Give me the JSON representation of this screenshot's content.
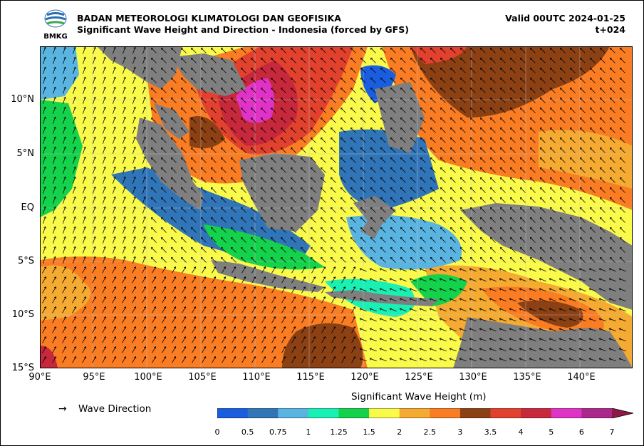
{
  "header": {
    "agency": "BADAN METEOROLOGI KLIMATOLOGI DAN GEOFISIKA",
    "product": "Significant Wave Height and Direction - Indonesia (forced by GFS)",
    "valid": "Valid 00UTC 2024-01-25",
    "forecast_step": "t+024",
    "logo_text": "BMKG"
  },
  "axes": {
    "lat_labels": [
      "10°N",
      "5°N",
      "EQ",
      "5°S",
      "10°S",
      "15°S"
    ],
    "lon_labels": [
      "90°E",
      "95°E",
      "100°E",
      "105°E",
      "110°E",
      "115°E",
      "120°E",
      "125°E",
      "130°E",
      "135°E",
      "140°E"
    ]
  },
  "legend": {
    "arrow_symbol": "→",
    "arrow_label": "Wave Direction"
  },
  "colorbar": {
    "title": "Significant Wave Height (m)",
    "ticks": [
      "0",
      "0.5",
      "0.75",
      "1",
      "1.25",
      "1.5",
      "2",
      "2.5",
      "3",
      "3.5",
      "4",
      "5",
      "6",
      "7"
    ],
    "colors": [
      "#1a5ee0",
      "#3175b9",
      "#5ab4e1",
      "#19f0b4",
      "#14d24b",
      "#fafa4b",
      "#f5aa32",
      "#fa7d23",
      "#8c4114",
      "#e1412d",
      "#c8283c",
      "#e132c8",
      "#aa288c"
    ],
    "extend_color": "#8c1a46"
  },
  "map_colors": {
    "land": "#7f7f7f",
    "ocean_base": "#fafa4b"
  }
}
